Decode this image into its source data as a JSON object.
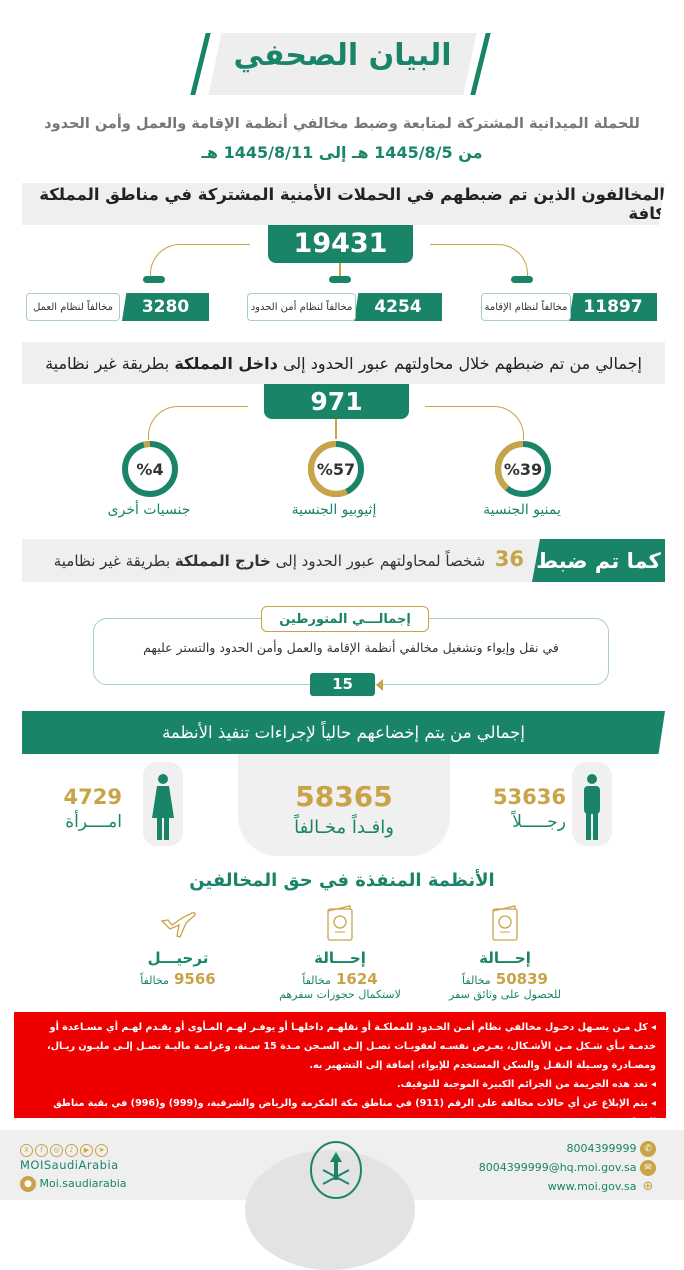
{
  "header": {
    "title": "البيان الصحفي",
    "subtitle": "للحملة الميدانية المشتركة لمتابعة وضبط مخالفي أنظمة الإقامة والعمل وأمن الحدود",
    "date_range": "من 1445/8/5 هـ إلى 1445/8/11 هـ"
  },
  "violators": {
    "heading": "المخالفون الذين تم ضبطهم في الحملات الأمنية المشتركة في مناطق المملكة كافة",
    "total": "19431",
    "items": [
      {
        "value": "11897",
        "label": "مخالفاً لنظام الإقامة"
      },
      {
        "value": "4254",
        "label": "مخالفاً لنظام أمن الحدود"
      },
      {
        "value": "3280",
        "label": "مخالفاً لنظام العمل"
      }
    ]
  },
  "inside": {
    "heading_pre": "إجمالي من تم ضبطهم خلال محاولتهم عبور الحدود إلى",
    "heading_bold": "داخل المملكة",
    "heading_post": "بطريقة غير نظامية",
    "total": "971",
    "nationalities": [
      {
        "percent_label": "%39",
        "percent": 39,
        "label": "يمنيو الجنسية"
      },
      {
        "percent_label": "%57",
        "percent": 57,
        "label": "إثيوبيو الجنسية"
      },
      {
        "percent_label": "%4",
        "percent": 4,
        "label": "جنسيات أخرى"
      }
    ]
  },
  "outside": {
    "tag": "كما تم ضبط",
    "count": "36",
    "text_pre": "شخصاً لمحاولتهم عبور الحدود إلى",
    "text_bold": "خارج المملكة",
    "text_post": "بطريقة غير نظامية"
  },
  "involved": {
    "title": "إجمالـــي المتورطين",
    "text": "في نقل وإيواء وتشغيل مخالفي أنظمة الإقامة والعمل وأمن الحدود والتستر عليهم",
    "count": "15"
  },
  "procedures": {
    "heading": "إجمالي من يتم إخضاعهم حالياً لإجراءات تنفيذ الأنظمة",
    "total": "58365",
    "total_label": "وافـداً مخـالفاً",
    "men": "53636",
    "men_label": "رجـــــلاً",
    "women": "4729",
    "women_label": "امــــرأة"
  },
  "enforced": {
    "heading": "الأنظمة المنفذة في حق المخالفين",
    "items": [
      {
        "icon": "passport-icon",
        "title": "إحـــالة",
        "value": "50839",
        "unit": "مخالفاً",
        "desc": "للحصول على وثائق سفر"
      },
      {
        "icon": "passport-icon",
        "title": "إحـــالة",
        "value": "1624",
        "unit": "مخالفاً",
        "desc": "لاستكمال حجوزات سفرهم"
      },
      {
        "icon": "airplane-icon",
        "title": "ترحيـــل",
        "value": "9566",
        "unit": "مخالفاً",
        "desc": ""
      }
    ]
  },
  "warnings": [
    "كل مـن يسـهل دخـول مخالفي نظام أمـن الحـدود للمملكـة أو نقلهـم داخلهـا أو يوفـر لهـم المـأوى أو يقـدم لهـم أي مسـاعدة أو خدمـة بـأي شـكل مـن الأشـكال، يعـرض نفسـه لعقوبـات تصـل إلـى السـجن مـدة 15 سـنة، وغرامـة ماليـة تصـل إلـى مليـون ريـال، ومصـادرة وسـيلة النقـل والسكن المستخدم للإيواء، إضافة إلى التشهير به.",
    "تعد هذه الجريمة من الجرائم الكبيرة الموجبة للتوقيف.",
    "يتم الإبلاغ عن أي حالات مخالفة على الرقم (911) في مناطق مكة المكرمة والرياض والشرقية، و(999) و(996) في بقية مناطق المملكة."
  ],
  "footer": {
    "phone": "8004399999",
    "email": "8004399999@hq.moi.gov.sa",
    "website": "www.moi.gov.sa",
    "social_handle": "MOISaudiArabia",
    "snapchat": "Moi.saudiarabia",
    "social_icons": [
      "x-icon",
      "facebook-icon",
      "instagram-icon",
      "tiktok-icon",
      "youtube-icon",
      "telegram-icon"
    ]
  },
  "colors": {
    "green": "#1a8468",
    "gold": "#c9a347",
    "red": "#ee0000",
    "gray": "#efefef"
  }
}
